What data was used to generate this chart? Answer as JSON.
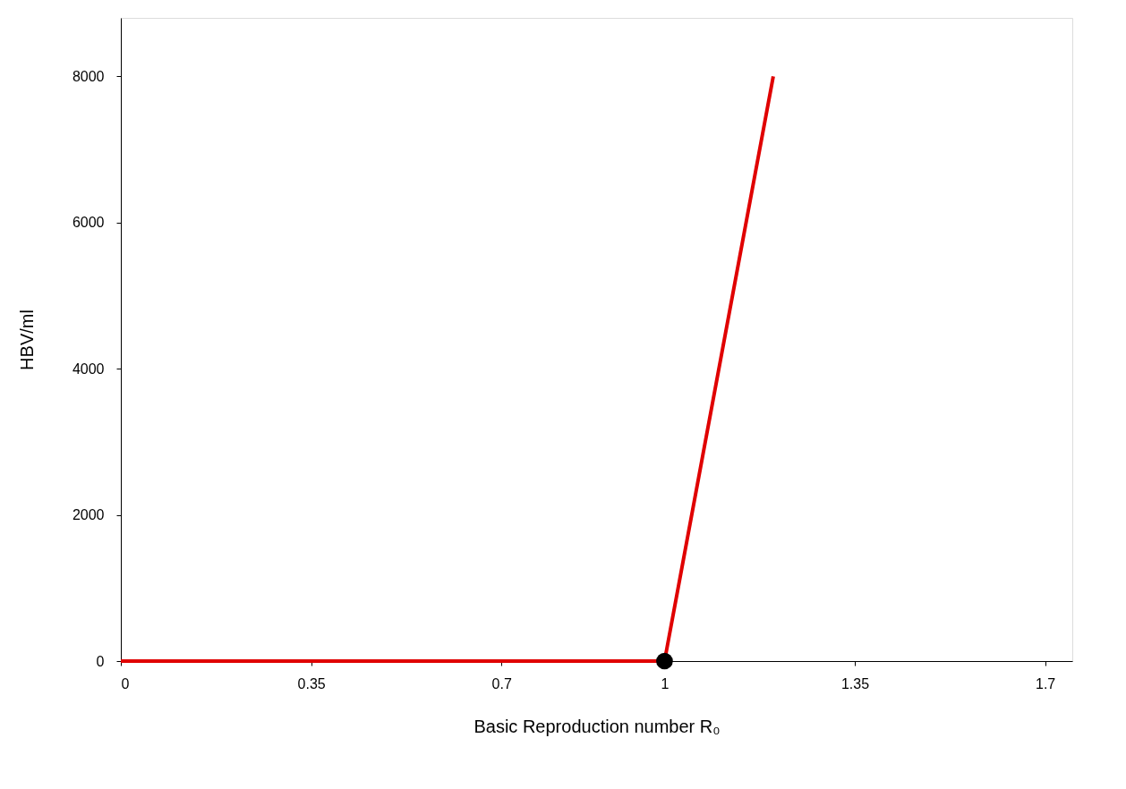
{
  "chart_data": {
    "type": "line",
    "xlabel": "Basic Reproduction number R₀",
    "ylabel": "HBV/ml",
    "xlim": [
      0,
      1.75
    ],
    "ylim": [
      0,
      8800
    ],
    "xticks": [
      0,
      0.35,
      0.7,
      1,
      1.35,
      1.7
    ],
    "yticks": [
      0,
      2000,
      4000,
      6000,
      8000
    ],
    "grid": false,
    "legend": false,
    "series": [
      {
        "color": "#e00000",
        "x": [
          0,
          1,
          1.2
        ],
        "values": [
          0,
          0,
          8000
        ],
        "marker": "none"
      },
      {
        "type": "scatter",
        "color": "#000000",
        "x": [
          1
        ],
        "values": [
          0
        ],
        "marker": "circle"
      }
    ]
  }
}
